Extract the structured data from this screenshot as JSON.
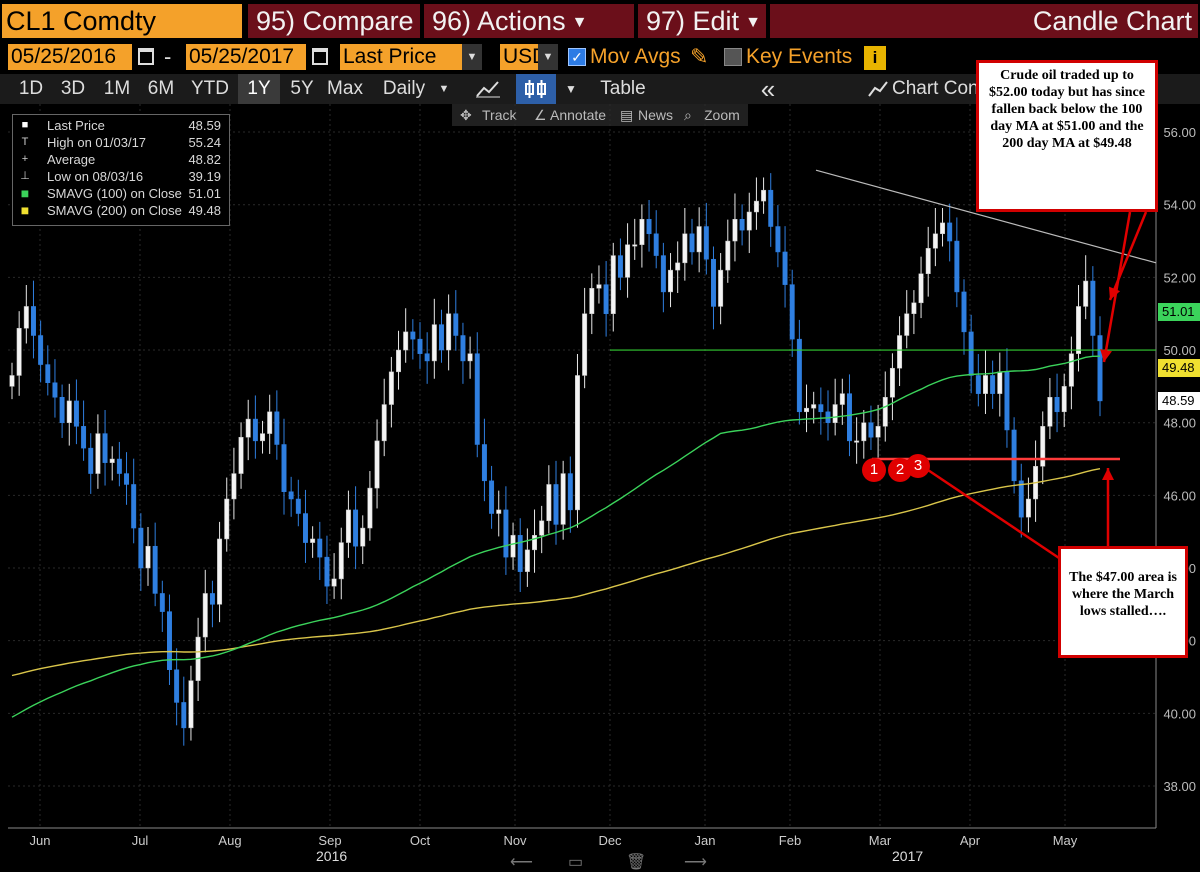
{
  "header": {
    "ticker": "CL1 Comdty",
    "compare": "95) Compare",
    "actions": "96) Actions",
    "edit": "97) Edit",
    "chart_type": "Candle Chart"
  },
  "controls": {
    "start_date": "05/25/2016",
    "date_sep": "-",
    "end_date": "05/25/2017",
    "field": "Last Price",
    "currency": "USD",
    "mov_avgs_label": "Mov Avgs",
    "key_events_label": "Key Events",
    "info": "i"
  },
  "timeframes": [
    "1D",
    "3D",
    "1M",
    "6M",
    "YTD",
    "1Y",
    "5Y",
    "Max"
  ],
  "active_timeframe": "1Y",
  "toolbar": {
    "period": "Daily",
    "table": "Table",
    "collapse": "«",
    "chart_con": "Chart Con"
  },
  "tools": {
    "track": "Track",
    "annotate": "Annotate",
    "news": "News",
    "zoom": "Zoom"
  },
  "legend": [
    {
      "label": "Last Price",
      "value": "48.59",
      "mark": "■",
      "color": "#ffffff"
    },
    {
      "label": "High on 01/03/17",
      "value": "55.24",
      "mark": "T",
      "color": "#cccccc"
    },
    {
      "label": "Average",
      "value": "48.82",
      "mark": "+",
      "color": "#cccccc"
    },
    {
      "label": "Low on 08/03/16",
      "value": "39.19",
      "mark": "⊥",
      "color": "#cccccc"
    },
    {
      "label": "SMAVG (100) on Close",
      "value": "51.01",
      "mark": "■",
      "color": "#3bd35b"
    },
    {
      "label": "SMAVG (200) on Close",
      "value": "49.48",
      "mark": "■",
      "color": "#f0e030"
    }
  ],
  "annotations": {
    "top_note": "Crude oil traded up to $52.00 today but has since fallen back below the 100 day MA at $51.00 and the 200 day MA at $49.48",
    "bottom_note": "The $47.00 area is where the March lows stalled….",
    "markers": [
      "1",
      "2",
      "3"
    ]
  },
  "price_tags": {
    "sma100": "51.01",
    "sma200": "49.48",
    "last": "48.59"
  },
  "axis_years": {
    "y2016": "2016",
    "y2017": "2017"
  },
  "colors": {
    "ticker_bg": "#f4a12a",
    "menu_bg": "#6b0f1a",
    "sma100": "#3bd35b",
    "sma200": "#d9c54a",
    "candle_up": "#ffffff",
    "candle_down": "#2f7fe0",
    "support": "#ff3b3b",
    "trendline": "#bbbbbb",
    "level50": "#33cc33"
  },
  "chart_data": {
    "type": "candlestick",
    "ylim": [
      37,
      57
    ],
    "yticks": [
      "38.00",
      "40.00",
      "42.00",
      "44.00",
      "46.00",
      "48.00",
      "50.00",
      "52.00",
      "54.00",
      "56.00"
    ],
    "xticks": [
      "Jun",
      "Jul",
      "Aug",
      "Sep",
      "Oct",
      "Nov",
      "Dec",
      "Jan",
      "Feb",
      "Mar",
      "Apr",
      "May"
    ],
    "grid": true,
    "close": [
      49.3,
      50.6,
      51.2,
      50.4,
      49.6,
      49.1,
      48.7,
      48.0,
      48.6,
      47.9,
      47.3,
      46.6,
      47.7,
      46.9,
      47.0,
      46.6,
      46.3,
      45.1,
      44.0,
      44.6,
      43.3,
      42.8,
      41.2,
      40.3,
      39.6,
      40.9,
      42.1,
      43.3,
      43.0,
      44.8,
      45.9,
      46.6,
      47.6,
      48.1,
      47.5,
      47.7,
      48.3,
      47.4,
      46.1,
      45.9,
      45.5,
      44.7,
      44.8,
      44.3,
      43.5,
      43.7,
      44.7,
      45.6,
      44.6,
      45.1,
      46.2,
      47.5,
      48.5,
      49.4,
      50.0,
      50.5,
      50.3,
      49.9,
      49.7,
      50.7,
      50.0,
      51.0,
      50.4,
      49.7,
      49.9,
      47.4,
      46.4,
      45.5,
      45.6,
      44.3,
      44.9,
      43.9,
      44.5,
      44.9,
      45.3,
      46.3,
      45.2,
      46.6,
      45.6,
      49.3,
      51.0,
      51.7,
      51.8,
      51.0,
      52.6,
      52.0,
      52.9,
      52.9,
      53.6,
      53.2,
      52.6,
      51.6,
      52.2,
      52.4,
      53.2,
      52.7,
      53.4,
      52.5,
      51.2,
      52.2,
      53.0,
      53.6,
      53.3,
      53.8,
      54.1,
      54.4,
      53.4,
      52.7,
      51.8,
      50.3,
      48.3,
      48.4,
      48.5,
      48.3,
      48.0,
      48.5,
      48.8,
      47.5,
      47.5,
      48.0,
      47.6,
      47.9,
      48.7,
      49.5,
      50.4,
      51.0,
      51.3,
      52.1,
      52.8,
      53.2,
      53.5,
      53.0,
      51.6,
      50.5,
      49.3,
      48.8,
      49.3,
      48.8,
      49.4,
      47.8,
      46.4,
      45.4,
      45.9,
      46.8,
      47.9,
      48.7,
      48.3,
      49.0,
      49.9,
      51.2,
      51.9,
      50.4,
      48.6
    ],
    "sma100": [
      null,
      null,
      null,
      null,
      null,
      null,
      null,
      null,
      null,
      null,
      null,
      null,
      null,
      null,
      null,
      null,
      null,
      null,
      null,
      null,
      null,
      null,
      null,
      null,
      null,
      null,
      null,
      null,
      null,
      null,
      null,
      null,
      null,
      null,
      null,
      null,
      null,
      null,
      null,
      null,
      null,
      null,
      null,
      null,
      null,
      null,
      null,
      null,
      null,
      null,
      null,
      null,
      null,
      null,
      null,
      null,
      null,
      null,
      null,
      null,
      null,
      null,
      null,
      null,
      null,
      null,
      null,
      null,
      null,
      null,
      null,
      null,
      null,
      null,
      null,
      null,
      null,
      null,
      null,
      null,
      null,
      null,
      null,
      null,
      null,
      null,
      null,
      null,
      null,
      null,
      null,
      null,
      null,
      null,
      null,
      null,
      null,
      null,
      null,
      null,
      null,
      null,
      null,
      null,
      null,
      null,
      null,
      null,
      null,
      null,
      null,
      null,
      null,
      null,
      null,
      null,
      null,
      null,
      null,
      null,
      null,
      null,
      null,
      null,
      null,
      null,
      null,
      null,
      null,
      null,
      null,
      null,
      null,
      null,
      null,
      null,
      null,
      null,
      null,
      null,
      null,
      null,
      null,
      null,
      null,
      null,
      null,
      null,
      null,
      null,
      null,
      null,
      null,
      null,
      null,
      null,
      null,
      null,
      null,
      null
    ]
  }
}
